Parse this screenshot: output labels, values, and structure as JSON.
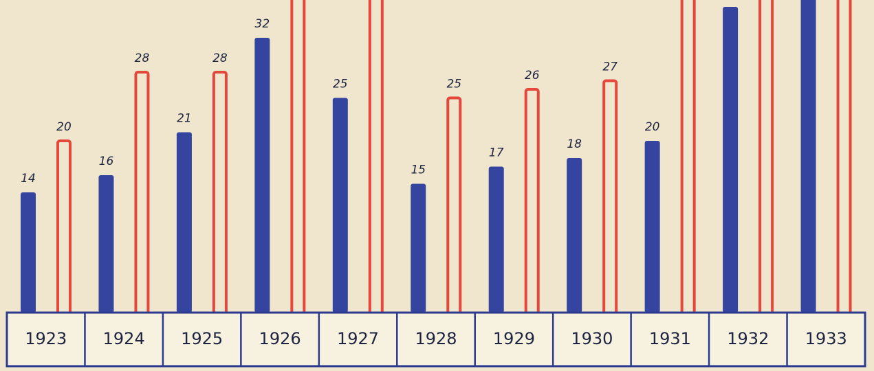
{
  "chart_data": {
    "type": "bar",
    "categories": [
      "1923",
      "1924",
      "1925",
      "1926",
      "1927",
      "1928",
      "1929",
      "1930",
      "1931",
      "1932",
      "1933"
    ],
    "series": [
      {
        "color": "#34449f",
        "values": [
          14,
          16,
          21,
          32,
          25,
          15,
          17,
          18,
          20,
          35.6,
          38
        ]
      },
      {
        "color": "#e5473d",
        "values": [
          20,
          28,
          28,
          38,
          38,
          25,
          26,
          27,
          38,
          38,
          38
        ]
      }
    ],
    "ylim": [
      0,
      36.4
    ]
  }
}
